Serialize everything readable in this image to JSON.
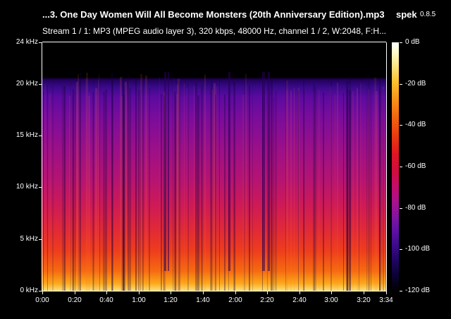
{
  "header": {
    "title": "...3. One Day Women Will All Become Monsters (20th Anniversary Edition).mp3",
    "app_name": "spek",
    "app_version": "0.8.5",
    "stream_info": "Stream 1 / 1: MP3 (MPEG audio layer 3), 320 kbps, 48000 Hz, channel 1 / 2, W:2048, F:H..."
  },
  "y_axis": {
    "ticks": [
      "24 kHz",
      "20 kHz",
      "15 kHz",
      "10 kHz",
      "5 kHz",
      "0 kHz"
    ],
    "values_khz": [
      24,
      20,
      15,
      10,
      5,
      0
    ]
  },
  "x_axis": {
    "ticks": [
      "0:00",
      "0:20",
      "0:40",
      "1:00",
      "1:20",
      "1:40",
      "2:00",
      "2:20",
      "2:40",
      "3:00",
      "3:20",
      "3:34"
    ],
    "values_sec": [
      0,
      20,
      40,
      60,
      80,
      100,
      120,
      140,
      160,
      180,
      200,
      214
    ]
  },
  "colorbar": {
    "ticks": [
      "0 dB",
      "-20 dB",
      "-40 dB",
      "-60 dB",
      "-80 dB",
      "-100 dB",
      "-120 dB"
    ],
    "values_db": [
      0,
      -20,
      -40,
      -60,
      -80,
      -100,
      -120
    ]
  },
  "spectrogram": {
    "duration_sec": 214,
    "max_freq_khz": 24,
    "cutoff_khz": 20
  }
}
